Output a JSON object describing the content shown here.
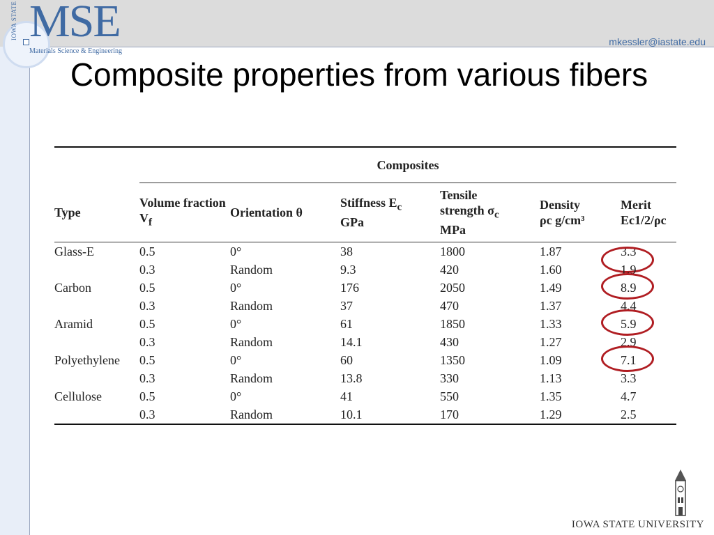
{
  "header": {
    "logo_text": "MSE",
    "logo_vertical": "IOWA STATE UNIVERSITY",
    "logo_subtitle": "Materials Science & Engineering",
    "email": "mkessler@iastate.edu"
  },
  "slide": {
    "title": "Composite properties from various fibers"
  },
  "table": {
    "group_header": "Composites",
    "columns": {
      "type": "Type",
      "volume_fraction": "Volume fraction V",
      "volume_fraction_sub": "f",
      "orientation": "Orientation θ",
      "stiffness": "Stiffness E",
      "stiffness_sub": "c",
      "stiffness_unit": "GPa",
      "tensile_line1": "Tensile",
      "tensile_line2": "strength σ",
      "tensile_sub": "c",
      "tensile_unit": "MPa",
      "density": "Density",
      "density_unit": "ρc g/cm³",
      "merit": "Merit",
      "merit_formula": "Ec1/2/ρc"
    },
    "rows": [
      {
        "type": "Glass-E",
        "vf": "0.5",
        "orientation": "0°",
        "stiffness": "38",
        "strength": "1800",
        "density": "1.87",
        "merit": "3.3",
        "circled": true
      },
      {
        "type": "",
        "vf": "0.3",
        "orientation": "Random",
        "stiffness": "9.3",
        "strength": "420",
        "density": "1.60",
        "merit": "1.9",
        "circled": false
      },
      {
        "type": "Carbon",
        "vf": "0.5",
        "orientation": "0°",
        "stiffness": "176",
        "strength": "2050",
        "density": "1.49",
        "merit": "8.9",
        "circled": true
      },
      {
        "type": "",
        "vf": "0.3",
        "orientation": "Random",
        "stiffness": "37",
        "strength": "470",
        "density": "1.37",
        "merit": "4.4",
        "circled": false
      },
      {
        "type": "Aramid",
        "vf": "0.5",
        "orientation": "0°",
        "stiffness": "61",
        "strength": "1850",
        "density": "1.33",
        "merit": "5.9",
        "circled": true
      },
      {
        "type": "",
        "vf": "0.3",
        "orientation": "Random",
        "stiffness": "14.1",
        "strength": "430",
        "density": "1.27",
        "merit": "2.9",
        "circled": false
      },
      {
        "type": "Polyethylene",
        "vf": "0.5",
        "orientation": "0°",
        "stiffness": "60",
        "strength": "1350",
        "density": "1.09",
        "merit": "7.1",
        "circled": true
      },
      {
        "type": "",
        "vf": "0.3",
        "orientation": "Random",
        "stiffness": "13.8",
        "strength": "330",
        "density": "1.13",
        "merit": "3.3",
        "circled": false
      },
      {
        "type": "Cellulose",
        "vf": "0.5",
        "orientation": "0°",
        "stiffness": "41",
        "strength": "550",
        "density": "1.35",
        "merit": "4.7",
        "circled": false
      },
      {
        "type": "",
        "vf": "0.3",
        "orientation": "Random",
        "stiffness": "10.1",
        "strength": "170",
        "density": "1.29",
        "merit": "2.5",
        "circled": false
      }
    ],
    "highlight_color": "#b01d22"
  },
  "footer": {
    "university": "IOWA STATE UNIVERSITY"
  }
}
